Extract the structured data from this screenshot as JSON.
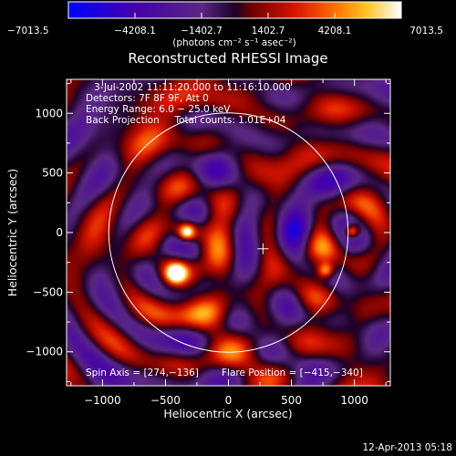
{
  "chart_data": {
    "type": "heatmap",
    "title": "Reconstructed RHESSI Image",
    "xlabel": "Heliocentric X (arcsec)",
    "ylabel": "Heliocentric Y (arcsec)",
    "xlim": [
      -1285,
      1285
    ],
    "ylim": [
      -1285,
      1285
    ],
    "xticks": [
      -1000,
      -500,
      0,
      500,
      1000
    ],
    "xtick_labels": [
      "−1000",
      "−500",
      "0",
      "500",
      "1000"
    ],
    "yticks": [
      -1000,
      -500,
      0,
      500,
      1000
    ],
    "ytick_labels": [
      "−1000",
      "−500",
      "0",
      "500",
      "1000"
    ],
    "colorbar": {
      "min": -7013.5,
      "max": 7013.5,
      "tick_values": [
        -7013.5,
        -4208.1,
        -1402.7,
        1402.7,
        4208.1,
        7013.5
      ],
      "tick_labels": [
        "−7013.5",
        "−4208.1",
        "−1402.7",
        "1402.7",
        "4208.1",
        "7013.5"
      ],
      "unit_label": "(photons cm⁻² s⁻¹ asec⁻²)"
    },
    "annotations": [
      "3-Jul-2002 11:11:20.000 to 11:16:10.000",
      "Detectors: 7F 8F 9F, Att 0",
      "Energy Range: 6.0 − 25.0 keV",
      "Back Projection     Total counts: 1.01E+04",
      "Spin Axis = [274,−136]",
      "Flare Position = [−415,−340]"
    ],
    "spin_axis": [
      274,
      -136
    ],
    "flare_position": [
      -415,
      -340
    ],
    "solar_disk_radius": 950,
    "solar_disk_center": [
      0,
      0
    ],
    "bright_sources": [
      {
        "x": -415,
        "y": -340,
        "value": 7013.5
      },
      {
        "x": -330,
        "y": 5,
        "value": 5600
      },
      {
        "x": 980,
        "y": 10,
        "value": 5400
      },
      {
        "x": 770,
        "y": -320,
        "value": 5000
      }
    ],
    "grid": false
  },
  "footer": {
    "date": "12-Apr-2013 05:18"
  },
  "colors": {
    "background": "#000000",
    "axes": "#ffffff"
  }
}
